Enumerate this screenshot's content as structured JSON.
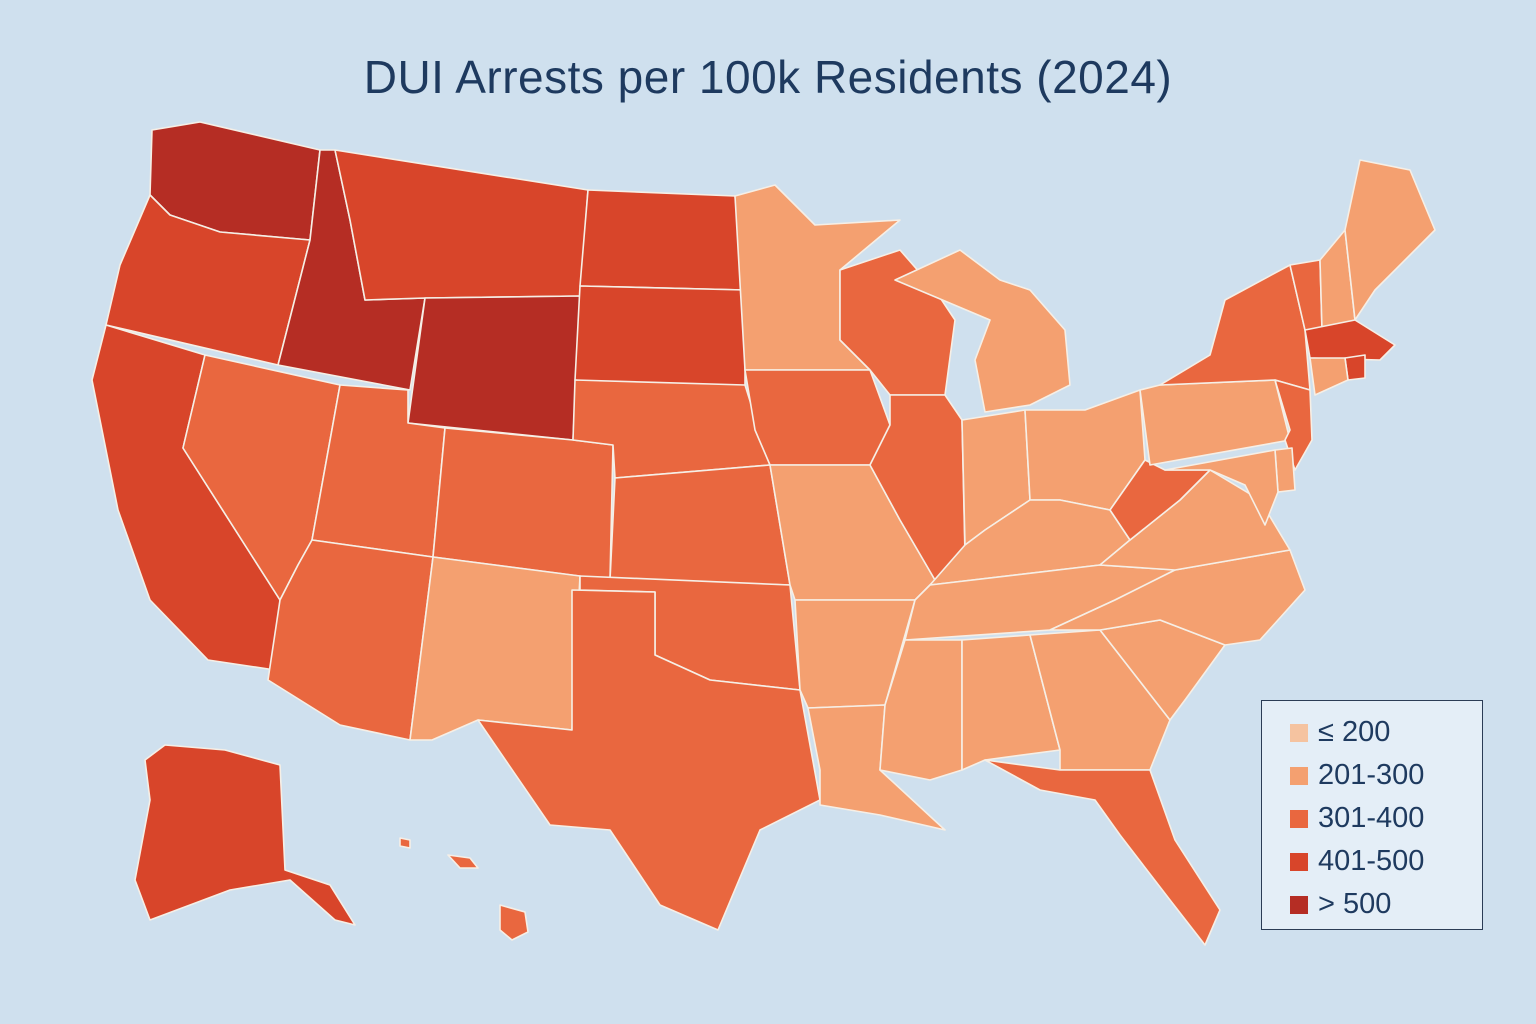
{
  "title": "DUI Arrests per 100k Residents (2024)",
  "legend": {
    "items": [
      {
        "label": "≤ 200",
        "color": "#f5c3a0"
      },
      {
        "label": "201-300",
        "color": "#f4a070"
      },
      {
        "label": "301-400",
        "color": "#e9673f"
      },
      {
        "label": "401-500",
        "color": "#d8452a"
      },
      {
        "label": "> 500",
        "color": "#b52d24"
      }
    ]
  },
  "states": {
    "WA": ">500",
    "OR": "401-500",
    "CA": "401-500",
    "ID": ">500",
    "NV": "301-400",
    "MT": "401-500",
    "WY": ">500",
    "UT": "301-400",
    "AZ": "301-400",
    "CO": "301-400",
    "NM": "201-300",
    "ND": "401-500",
    "SD": "401-500",
    "NE": "301-400",
    "KS": "301-400",
    "OK": "301-400",
    "TX": "301-400",
    "MN": "201-300",
    "IA": "301-400",
    "MO": "201-300",
    "AR": "201-300",
    "LA": "201-300",
    "WI": "301-400",
    "IL": "301-400",
    "MI": "201-300",
    "IN": "201-300",
    "OH": "201-300",
    "KY": "201-300",
    "TN": "201-300",
    "MS": "201-300",
    "AL": "201-300",
    "GA": "201-300",
    "FL": "301-400",
    "SC": "201-300",
    "NC": "201-300",
    "VA": "201-300",
    "WV": "301-400",
    "PA": "201-300",
    "NY": "301-400",
    "VT": "301-400",
    "NH": "201-300",
    "ME": "201-300",
    "MA": "401-500",
    "RI": "401-500",
    "CT": "201-300",
    "NJ": "301-400",
    "DE": "201-300",
    "MD": "201-300",
    "AK": "401-500",
    "HI": "301-400"
  }
}
